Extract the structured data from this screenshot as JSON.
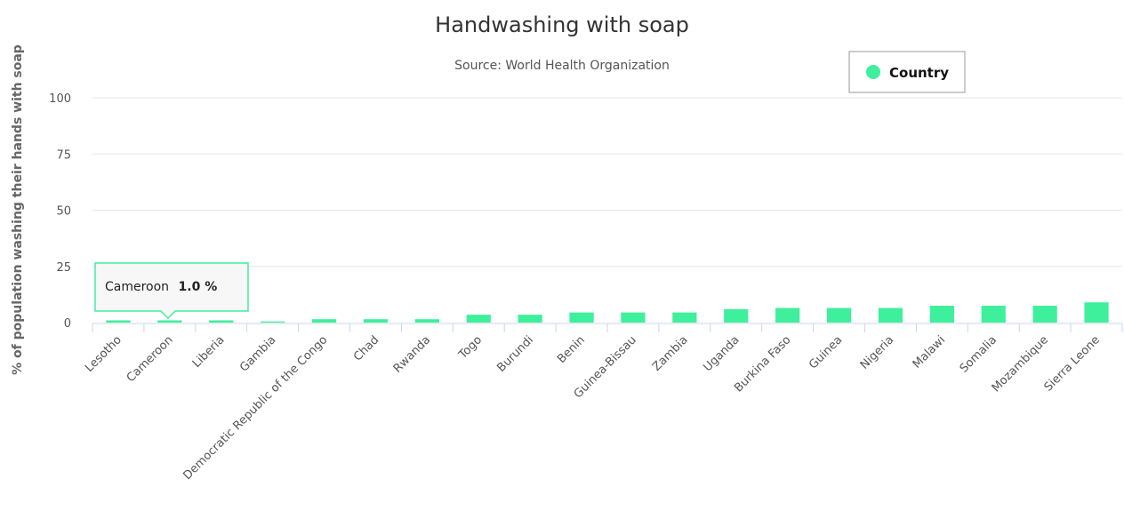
{
  "chart_data": {
    "type": "bar",
    "title": "Handwashing with soap",
    "subtitle": "Source: World Health Organization",
    "xlabel": "",
    "ylabel": "% of population washing their hands with soap",
    "ylim": [
      0,
      100
    ],
    "yticks": [
      0,
      25,
      50,
      75,
      100
    ],
    "grid": true,
    "legend_position": "top-right",
    "categories": [
      "Lesotho",
      "Cameroon",
      "Liberia",
      "Gambia",
      "Democratic Republic of the Congo",
      "Chad",
      "Rwanda",
      "Togo",
      "Burundi",
      "Benin",
      "Guinea-Bissau",
      "Zambia",
      "Uganda",
      "Burkina Faso",
      "Guinea",
      "Nigeria",
      "Malawi",
      "Somalia",
      "Mozambique",
      "Sierra Leone"
    ],
    "series": [
      {
        "name": "Country",
        "color": "#3ef09c",
        "values": [
          1.0,
          1.0,
          1.0,
          0.5,
          1.5,
          1.5,
          1.5,
          3.5,
          3.5,
          4.5,
          4.5,
          4.5,
          6.0,
          6.5,
          6.5,
          6.5,
          7.5,
          7.5,
          7.5,
          9.0
        ]
      }
    ],
    "tooltip": {
      "category": "Cameroon",
      "value_text": "1.0 %"
    }
  }
}
